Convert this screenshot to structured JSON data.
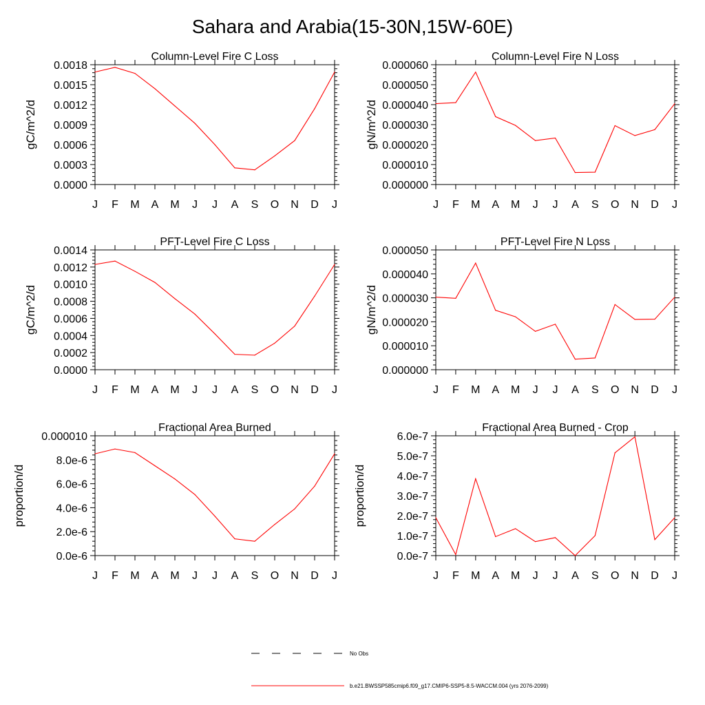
{
  "title": "Sahara and Arabia(15-30N,15W-60E)",
  "legend": {
    "obs_label": "No Obs",
    "model_label": "b.e21.BWSSP585cmip6.f09_g17.CMIP6-SSP5-8.5-WACCM.004 (yrs 2076-2099)",
    "model_color": "#ff0000",
    "obs_color": "#000000"
  },
  "chart_data": [
    {
      "type": "line",
      "title": "Column-Level Fire C Loss",
      "ylabel": "gC/m^2/d",
      "categories": [
        "J",
        "F",
        "M",
        "A",
        "M",
        "J",
        "J",
        "A",
        "S",
        "O",
        "N",
        "D",
        "J"
      ],
      "ylim": [
        0,
        0.0018
      ],
      "yticks": [
        "0.0000",
        "0.0003",
        "0.0006",
        "0.0009",
        "0.0012",
        "0.0015",
        "0.0018"
      ],
      "series": [
        {
          "color": "#ff0000",
          "values": [
            0.00169,
            0.00176,
            0.00167,
            0.00144,
            0.00118,
            0.00092,
            0.0006,
            0.00025,
            0.00022,
            0.00043,
            0.00066,
            0.00114,
            0.00169
          ]
        }
      ]
    },
    {
      "type": "line",
      "title": "Column-Level Fire N Loss",
      "ylabel": "gN/m^2/d",
      "categories": [
        "J",
        "F",
        "M",
        "A",
        "M",
        "J",
        "J",
        "A",
        "S",
        "O",
        "N",
        "D",
        "J"
      ],
      "ylim": [
        0,
        6e-05
      ],
      "yticks": [
        "0.000000",
        "0.000010",
        "0.000020",
        "0.000030",
        "0.000040",
        "0.000050",
        "0.000060"
      ],
      "series": [
        {
          "color": "#ff0000",
          "values": [
            4.05e-05,
            4.1e-05,
            5.63e-05,
            3.4e-05,
            2.96e-05,
            2.2e-05,
            2.33e-05,
            6e-06,
            6.2e-06,
            2.95e-05,
            2.45e-05,
            2.75e-05,
            4.05e-05
          ]
        }
      ]
    },
    {
      "type": "line",
      "title": "PFT-Level Fire C Loss",
      "ylabel": "gC/m^2/d",
      "categories": [
        "J",
        "F",
        "M",
        "A",
        "M",
        "J",
        "J",
        "A",
        "S",
        "O",
        "N",
        "D",
        "J"
      ],
      "ylim": [
        0,
        0.0014
      ],
      "yticks": [
        "0.0000",
        "0.0002",
        "0.0004",
        "0.0006",
        "0.0008",
        "0.0010",
        "0.0012",
        "0.0014"
      ],
      "series": [
        {
          "color": "#ff0000",
          "values": [
            0.00123,
            0.00127,
            0.00115,
            0.00102,
            0.00083,
            0.00065,
            0.00042,
            0.00018,
            0.00017,
            0.00031,
            0.00051,
            0.00086,
            0.00123
          ]
        }
      ]
    },
    {
      "type": "line",
      "title": "PFT-Level Fire N Loss",
      "ylabel": "gN/m^2/d",
      "categories": [
        "J",
        "F",
        "M",
        "A",
        "M",
        "J",
        "J",
        "A",
        "S",
        "O",
        "N",
        "D",
        "J"
      ],
      "ylim": [
        0,
        5e-05
      ],
      "yticks": [
        "0.000000",
        "0.000010",
        "0.000020",
        "0.000030",
        "0.000040",
        "0.000050"
      ],
      "series": [
        {
          "color": "#ff0000",
          "values": [
            3.03e-05,
            2.98e-05,
            4.45e-05,
            2.48e-05,
            2.21e-05,
            1.6e-05,
            1.9e-05,
            4.4e-06,
            4.9e-06,
            2.72e-05,
            2.1e-05,
            2.11e-05,
            3.03e-05
          ]
        }
      ]
    },
    {
      "type": "line",
      "title": "Fractional Area Burned",
      "ylabel": "proportion/d",
      "categories": [
        "J",
        "F",
        "M",
        "A",
        "M",
        "J",
        "J",
        "A",
        "S",
        "O",
        "N",
        "D",
        "J"
      ],
      "ylim": [
        0,
        1e-05
      ],
      "yticks": [
        "0.0e-6",
        "2.0e-6",
        "4.0e-6",
        "6.0e-6",
        "8.0e-6",
        "0.000010"
      ],
      "series": [
        {
          "color": "#ff0000",
          "values": [
            8.5e-06,
            8.9e-06,
            8.6e-06,
            7.5e-06,
            6.4e-06,
            5.1e-06,
            3.3e-06,
            1.4e-06,
            1.2e-06,
            2.6e-06,
            3.9e-06,
            5.8e-06,
            8.5e-06
          ]
        }
      ]
    },
    {
      "type": "line",
      "title": "Fractional Area Burned - Crop",
      "ylabel": "proportion/d",
      "categories": [
        "J",
        "F",
        "M",
        "A",
        "M",
        "J",
        "J",
        "A",
        "S",
        "O",
        "N",
        "D",
        "J"
      ],
      "ylim": [
        0,
        6e-07
      ],
      "yticks": [
        "0.0e-7",
        "1.0e-7",
        "2.0e-7",
        "3.0e-7",
        "4.0e-7",
        "5.0e-7",
        "6.0e-7"
      ],
      "series": [
        {
          "color": "#ff0000",
          "values": [
            1.9e-07,
            5e-09,
            3.85e-07,
            9.5e-08,
            1.35e-07,
            7e-08,
            9e-08,
            0.0,
            1e-07,
            5.15e-07,
            5.95e-07,
            8e-08,
            1.9e-07
          ]
        }
      ]
    }
  ]
}
